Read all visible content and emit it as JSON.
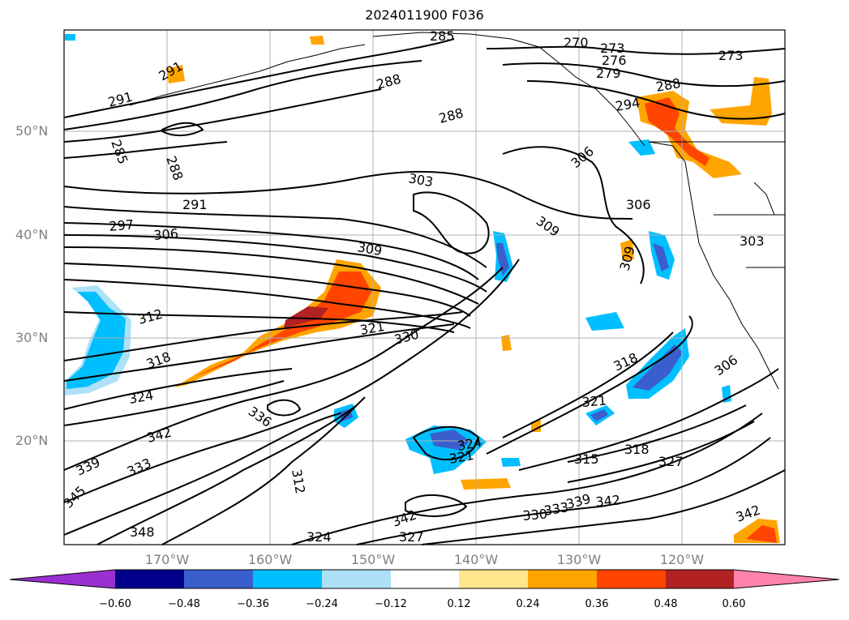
{
  "title": "2024011900 F036",
  "map": {
    "lat_labels": [
      "50°N",
      "40°N",
      "30°N",
      "20°N"
    ],
    "lon_labels": [
      "170°W",
      "160°W",
      "150°W",
      "140°W",
      "130°W",
      "120°W"
    ],
    "contour_labels": [
      "285",
      "270",
      "273",
      "276",
      "279",
      "273",
      "291",
      "291",
      "288",
      "288",
      "294",
      "285",
      "288",
      "288",
      "303",
      "306",
      "291",
      "297",
      "306",
      "309",
      "309",
      "306",
      "309",
      "303",
      "312",
      "321",
      "330",
      "318",
      "318",
      "324",
      "336",
      "321",
      "342",
      "324",
      "321",
      "339",
      "333",
      "312",
      "315",
      "318",
      "327",
      "345",
      "342",
      "348",
      "324",
      "327",
      "330",
      "333",
      "339",
      "342",
      "342",
      "306"
    ]
  },
  "colorbar": {
    "ticks": [
      "−0.60",
      "−0.48",
      "−0.36",
      "−0.24",
      "−0.12",
      "0.12",
      "0.24",
      "0.36",
      "0.48",
      "0.60"
    ],
    "colors": [
      "#9b30d0",
      "#00008b",
      "#3a5fcd",
      "#00bfff",
      "#aee1f8",
      "#ffffff",
      "#ffe68c",
      "#ffa500",
      "#ff4500",
      "#b22222",
      "#ff82ab"
    ]
  }
}
